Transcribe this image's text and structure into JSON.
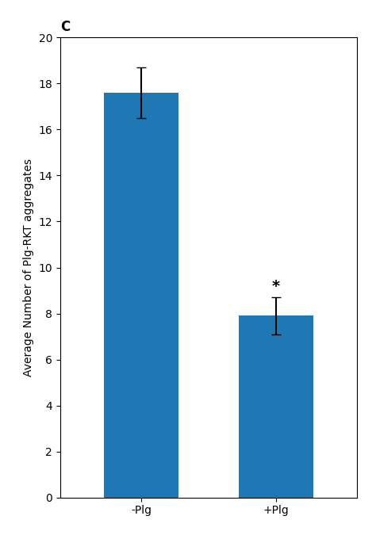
{
  "chart_data": {
    "type": "bar",
    "title": "C",
    "categories": [
      "-Plg",
      "+Plg"
    ],
    "values": [
      17.6,
      7.9
    ],
    "errors": [
      1.1,
      0.8
    ],
    "ylabel": "Average Number of Plg-RKT aggregates",
    "ylim": [
      0,
      20
    ],
    "yticks": [
      0,
      2,
      4,
      6,
      8,
      10,
      12,
      14,
      16,
      18,
      20
    ],
    "grid": false,
    "annotations": [
      {
        "text": "*",
        "category": "+Plg"
      }
    ]
  }
}
